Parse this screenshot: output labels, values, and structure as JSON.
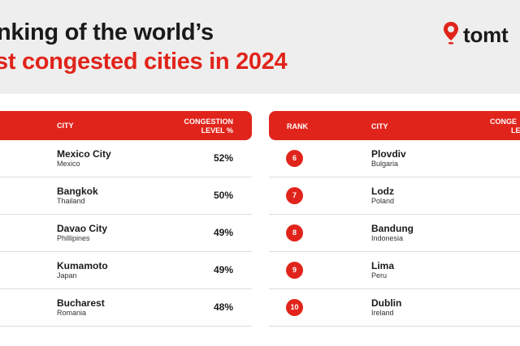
{
  "header": {
    "title_line1": "nking of the world’s",
    "title_line2": "st congested cities in 2024",
    "logo_text": "tomt",
    "colors": {
      "accent": "#e1241b",
      "band": "#eeeeee",
      "text": "#1a1a1a"
    }
  },
  "left_table": {
    "headers": {
      "city": "CITY",
      "level_line1": "CONGESTION",
      "level_line2": "LEVEL %"
    },
    "rows": [
      {
        "city": "Mexico City",
        "country": "Mexico",
        "level": "52%"
      },
      {
        "city": "Bangkok",
        "country": "Thailand",
        "level": "50%"
      },
      {
        "city": "Davao City",
        "country": "Phillipines",
        "level": "49%"
      },
      {
        "city": "Kumamoto",
        "country": "Japan",
        "level": "49%"
      },
      {
        "city": "Bucharest",
        "country": "Romania",
        "level": "48%"
      }
    ]
  },
  "right_table": {
    "headers": {
      "rank": "RANK",
      "city": "CITY",
      "level_line1": "CONGE",
      "level_line2": "LE"
    },
    "rows": [
      {
        "rank": "6",
        "city": "Plovdiv",
        "country": "Bulgaria"
      },
      {
        "rank": "7",
        "city": "Lodz",
        "country": "Poland"
      },
      {
        "rank": "8",
        "city": "Bandung",
        "country": "Indonesia"
      },
      {
        "rank": "9",
        "city": "Lima",
        "country": "Peru"
      },
      {
        "rank": "10",
        "city": "Dublin",
        "country": "Ireland"
      }
    ]
  }
}
